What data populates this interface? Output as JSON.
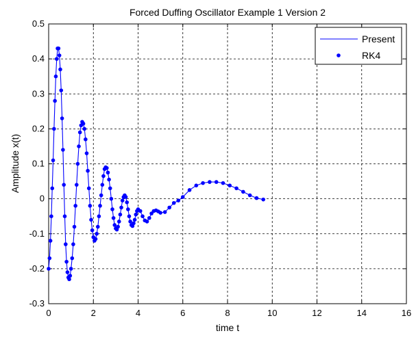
{
  "chart_data": {
    "type": "line",
    "title": "Forced Duffing Oscillator Example 1 Version 2",
    "xlabel": "time t",
    "ylabel": "Amplitude x(t)",
    "xlim": [
      0,
      16
    ],
    "ylim": [
      -0.3,
      0.5
    ],
    "x_ticks": [
      "0",
      "2",
      "4",
      "6",
      "8",
      "10",
      "12",
      "14",
      "16"
    ],
    "y_ticks": [
      "-0.3",
      "-0.2",
      "-0.1",
      "0",
      "0.1",
      "0.2",
      "0.3",
      "0.4",
      "0.5"
    ],
    "grid": true,
    "grid_style": "dashed",
    "legend_position": "top-right",
    "colors": {
      "series": "#0000ff",
      "axis": "#000000",
      "grid": "#000000",
      "background": "#ffffff"
    },
    "series": [
      {
        "name": "Present",
        "style": "solid-line",
        "points": [
          [
            0,
            -0.2
          ],
          [
            0.04,
            -0.17
          ],
          [
            0.08,
            -0.12
          ],
          [
            0.12,
            -0.05
          ],
          [
            0.16,
            0.03
          ],
          [
            0.2,
            0.11
          ],
          [
            0.24,
            0.2
          ],
          [
            0.28,
            0.28
          ],
          [
            0.32,
            0.35
          ],
          [
            0.36,
            0.4
          ],
          [
            0.4,
            0.43
          ],
          [
            0.44,
            0.43
          ],
          [
            0.48,
            0.41
          ],
          [
            0.52,
            0.37
          ],
          [
            0.56,
            0.31
          ],
          [
            0.6,
            0.23
          ],
          [
            0.64,
            0.14
          ],
          [
            0.68,
            0.04
          ],
          [
            0.72,
            -0.05
          ],
          [
            0.76,
            -0.13
          ],
          [
            0.8,
            -0.18
          ],
          [
            0.84,
            -0.21
          ],
          [
            0.88,
            -0.225
          ],
          [
            0.92,
            -0.23
          ],
          [
            0.96,
            -0.22
          ],
          [
            1.0,
            -0.2
          ],
          [
            1.05,
            -0.17
          ],
          [
            1.1,
            -0.13
          ],
          [
            1.15,
            -0.08
          ],
          [
            1.2,
            -0.02
          ],
          [
            1.25,
            0.04
          ],
          [
            1.3,
            0.1
          ],
          [
            1.35,
            0.15
          ],
          [
            1.4,
            0.19
          ],
          [
            1.45,
            0.21
          ],
          [
            1.5,
            0.22
          ],
          [
            1.55,
            0.215
          ],
          [
            1.6,
            0.2
          ],
          [
            1.65,
            0.17
          ],
          [
            1.7,
            0.13
          ],
          [
            1.75,
            0.08
          ],
          [
            1.8,
            0.03
          ],
          [
            1.85,
            -0.02
          ],
          [
            1.9,
            -0.06
          ],
          [
            1.95,
            -0.09
          ],
          [
            2.0,
            -0.11
          ],
          [
            2.05,
            -0.12
          ],
          [
            2.1,
            -0.115
          ],
          [
            2.15,
            -0.1
          ],
          [
            2.2,
            -0.08
          ],
          [
            2.25,
            -0.05
          ],
          [
            2.3,
            -0.02
          ],
          [
            2.35,
            0.01
          ],
          [
            2.4,
            0.04
          ],
          [
            2.45,
            0.065
          ],
          [
            2.5,
            0.085
          ],
          [
            2.55,
            0.09
          ],
          [
            2.6,
            0.088
          ],
          [
            2.65,
            0.075
          ],
          [
            2.7,
            0.055
          ],
          [
            2.75,
            0.03
          ],
          [
            2.8,
            0.0
          ],
          [
            2.85,
            -0.03
          ],
          [
            2.9,
            -0.055
          ],
          [
            2.95,
            -0.075
          ],
          [
            3.0,
            -0.085
          ],
          [
            3.05,
            -0.088
          ],
          [
            3.1,
            -0.08
          ],
          [
            3.15,
            -0.065
          ],
          [
            3.2,
            -0.045
          ],
          [
            3.25,
            -0.025
          ],
          [
            3.3,
            -0.005
          ],
          [
            3.35,
            0.005
          ],
          [
            3.4,
            0.01
          ],
          [
            3.45,
            0.005
          ],
          [
            3.5,
            -0.01
          ],
          [
            3.55,
            -0.03
          ],
          [
            3.6,
            -0.05
          ],
          [
            3.65,
            -0.065
          ],
          [
            3.7,
            -0.075
          ],
          [
            3.75,
            -0.078
          ],
          [
            3.8,
            -0.07
          ],
          [
            3.85,
            -0.06
          ],
          [
            3.9,
            -0.045
          ],
          [
            3.95,
            -0.035
          ],
          [
            4.0,
            -0.03
          ],
          [
            4.1,
            -0.035
          ],
          [
            4.2,
            -0.05
          ],
          [
            4.3,
            -0.062
          ],
          [
            4.4,
            -0.065
          ],
          [
            4.5,
            -0.055
          ],
          [
            4.6,
            -0.042
          ],
          [
            4.7,
            -0.035
          ],
          [
            4.8,
            -0.033
          ],
          [
            4.9,
            -0.036
          ],
          [
            5.0,
            -0.04
          ],
          [
            5.2,
            -0.038
          ],
          [
            5.4,
            -0.025
          ],
          [
            5.6,
            -0.012
          ],
          [
            5.8,
            -0.005
          ],
          [
            6.0,
            0.005
          ],
          [
            6.3,
            0.025
          ],
          [
            6.6,
            0.038
          ],
          [
            6.9,
            0.045
          ],
          [
            7.2,
            0.048
          ],
          [
            7.5,
            0.048
          ],
          [
            7.8,
            0.045
          ],
          [
            8.1,
            0.038
          ],
          [
            8.4,
            0.03
          ],
          [
            8.7,
            0.02
          ],
          [
            9.0,
            0.01
          ],
          [
            9.3,
            0.002
          ],
          [
            9.6,
            -0.002
          ]
        ]
      },
      {
        "name": "RK4",
        "style": "dot-markers",
        "points": [
          [
            0,
            -0.2
          ],
          [
            0.04,
            -0.17
          ],
          [
            0.08,
            -0.12
          ],
          [
            0.12,
            -0.05
          ],
          [
            0.16,
            0.03
          ],
          [
            0.2,
            0.11
          ],
          [
            0.24,
            0.2
          ],
          [
            0.28,
            0.28
          ],
          [
            0.32,
            0.35
          ],
          [
            0.36,
            0.4
          ],
          [
            0.4,
            0.43
          ],
          [
            0.44,
            0.43
          ],
          [
            0.48,
            0.41
          ],
          [
            0.52,
            0.37
          ],
          [
            0.56,
            0.31
          ],
          [
            0.6,
            0.23
          ],
          [
            0.64,
            0.14
          ],
          [
            0.68,
            0.04
          ],
          [
            0.72,
            -0.05
          ],
          [
            0.76,
            -0.13
          ],
          [
            0.8,
            -0.18
          ],
          [
            0.84,
            -0.21
          ],
          [
            0.88,
            -0.225
          ],
          [
            0.92,
            -0.23
          ],
          [
            0.96,
            -0.22
          ],
          [
            1.0,
            -0.2
          ],
          [
            1.05,
            -0.17
          ],
          [
            1.1,
            -0.13
          ],
          [
            1.15,
            -0.08
          ],
          [
            1.2,
            -0.02
          ],
          [
            1.25,
            0.04
          ],
          [
            1.3,
            0.1
          ],
          [
            1.35,
            0.15
          ],
          [
            1.4,
            0.19
          ],
          [
            1.45,
            0.21
          ],
          [
            1.5,
            0.22
          ],
          [
            1.55,
            0.215
          ],
          [
            1.6,
            0.2
          ],
          [
            1.65,
            0.17
          ],
          [
            1.7,
            0.13
          ],
          [
            1.75,
            0.08
          ],
          [
            1.8,
            0.03
          ],
          [
            1.85,
            -0.02
          ],
          [
            1.9,
            -0.06
          ],
          [
            1.95,
            -0.09
          ],
          [
            2.0,
            -0.11
          ],
          [
            2.05,
            -0.12
          ],
          [
            2.1,
            -0.115
          ],
          [
            2.15,
            -0.1
          ],
          [
            2.2,
            -0.08
          ],
          [
            2.25,
            -0.05
          ],
          [
            2.3,
            -0.02
          ],
          [
            2.35,
            0.01
          ],
          [
            2.4,
            0.04
          ],
          [
            2.45,
            0.065
          ],
          [
            2.5,
            0.085
          ],
          [
            2.55,
            0.09
          ],
          [
            2.6,
            0.088
          ],
          [
            2.65,
            0.075
          ],
          [
            2.7,
            0.055
          ],
          [
            2.75,
            0.03
          ],
          [
            2.8,
            0.0
          ],
          [
            2.85,
            -0.03
          ],
          [
            2.9,
            -0.055
          ],
          [
            2.95,
            -0.075
          ],
          [
            3.0,
            -0.085
          ],
          [
            3.05,
            -0.088
          ],
          [
            3.1,
            -0.08
          ],
          [
            3.15,
            -0.065
          ],
          [
            3.2,
            -0.045
          ],
          [
            3.25,
            -0.025
          ],
          [
            3.3,
            -0.005
          ],
          [
            3.35,
            0.005
          ],
          [
            3.4,
            0.01
          ],
          [
            3.45,
            0.005
          ],
          [
            3.5,
            -0.01
          ],
          [
            3.55,
            -0.03
          ],
          [
            3.6,
            -0.05
          ],
          [
            3.65,
            -0.065
          ],
          [
            3.7,
            -0.075
          ],
          [
            3.75,
            -0.078
          ],
          [
            3.8,
            -0.07
          ],
          [
            3.85,
            -0.06
          ],
          [
            3.9,
            -0.045
          ],
          [
            3.95,
            -0.035
          ],
          [
            4.0,
            -0.03
          ],
          [
            4.1,
            -0.035
          ],
          [
            4.2,
            -0.05
          ],
          [
            4.3,
            -0.062
          ],
          [
            4.4,
            -0.065
          ],
          [
            4.5,
            -0.055
          ],
          [
            4.6,
            -0.042
          ],
          [
            4.7,
            -0.035
          ],
          [
            4.8,
            -0.033
          ],
          [
            4.9,
            -0.036
          ],
          [
            5.0,
            -0.04
          ],
          [
            5.2,
            -0.038
          ],
          [
            5.4,
            -0.025
          ],
          [
            5.6,
            -0.012
          ],
          [
            5.8,
            -0.005
          ],
          [
            6.0,
            0.005
          ],
          [
            6.3,
            0.025
          ],
          [
            6.6,
            0.038
          ],
          [
            6.9,
            0.045
          ],
          [
            7.2,
            0.048
          ],
          [
            7.5,
            0.048
          ],
          [
            7.8,
            0.045
          ],
          [
            8.1,
            0.038
          ],
          [
            8.4,
            0.03
          ],
          [
            8.7,
            0.02
          ],
          [
            9.0,
            0.01
          ],
          [
            9.3,
            0.002
          ],
          [
            9.6,
            -0.002
          ]
        ]
      }
    ]
  }
}
